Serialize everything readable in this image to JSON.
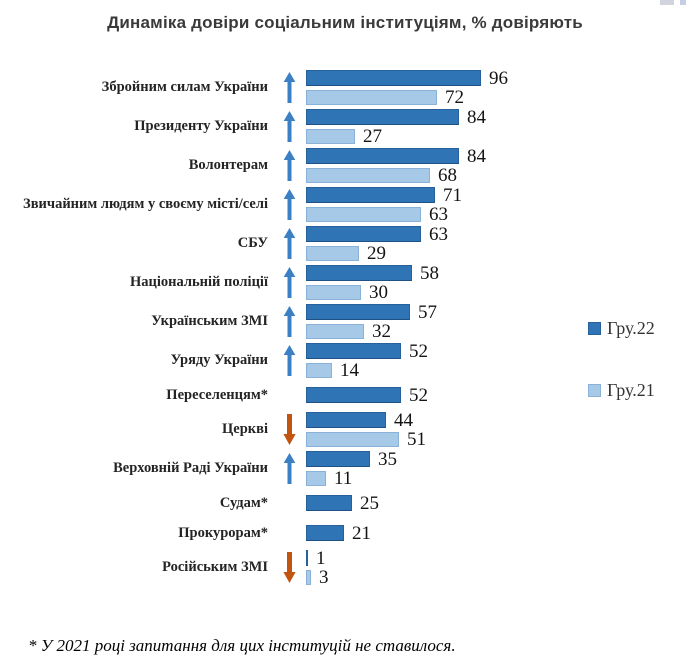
{
  "title": "Динаміка довіри соціальним інституціям, % довіряють",
  "footnote": "* У 2021 році запитання для цих інституцій не ставилося.",
  "legend": {
    "position": "right",
    "items": [
      {
        "label": "Гру.22",
        "color": "#2F74B5",
        "border": "#27619C"
      },
      {
        "label": "Гру.21",
        "color": "#A6C9E8",
        "border": "#8AB2D9"
      }
    ]
  },
  "colors": {
    "bar_dark": "#2F74B5",
    "bar_light": "#A6C9E8",
    "arrow_up": "#3B7FC4",
    "arrow_down": "#C2540F",
    "title_text": "#3A3A3A",
    "label_text": "#242424"
  },
  "chart_data": {
    "type": "bar",
    "orientation": "horizontal",
    "title": "Динаміка довіри соціальним інституціям, % довіряють",
    "xlabel": "% довіряють",
    "xlim": [
      0,
      100
    ],
    "grid": false,
    "legend_position": "right",
    "value_labels": true,
    "categories": [
      "Збройним силам України",
      "Президенту України",
      "Волонтерам",
      "Звичайним людям у своєму місті/селі",
      "СБУ",
      "Національній поліції",
      "Українським ЗМІ",
      "Уряду України",
      "Переселенцям*",
      "Церкві",
      "Верховній Раді України",
      "Судам*",
      "Прокурорам*",
      "Російським ЗМІ"
    ],
    "series": [
      {
        "name": "Гру.22",
        "values": [
          96,
          84,
          84,
          71,
          63,
          58,
          57,
          52,
          52,
          44,
          35,
          25,
          21,
          1
        ]
      },
      {
        "name": "Гру.21",
        "values": [
          72,
          27,
          68,
          63,
          29,
          30,
          32,
          14,
          null,
          51,
          11,
          null,
          null,
          3
        ]
      }
    ],
    "trend_arrows": [
      "up",
      "up",
      "up",
      "up",
      "up",
      "up",
      "up",
      "up",
      "none",
      "down",
      "up",
      "none",
      "none",
      "down"
    ]
  }
}
